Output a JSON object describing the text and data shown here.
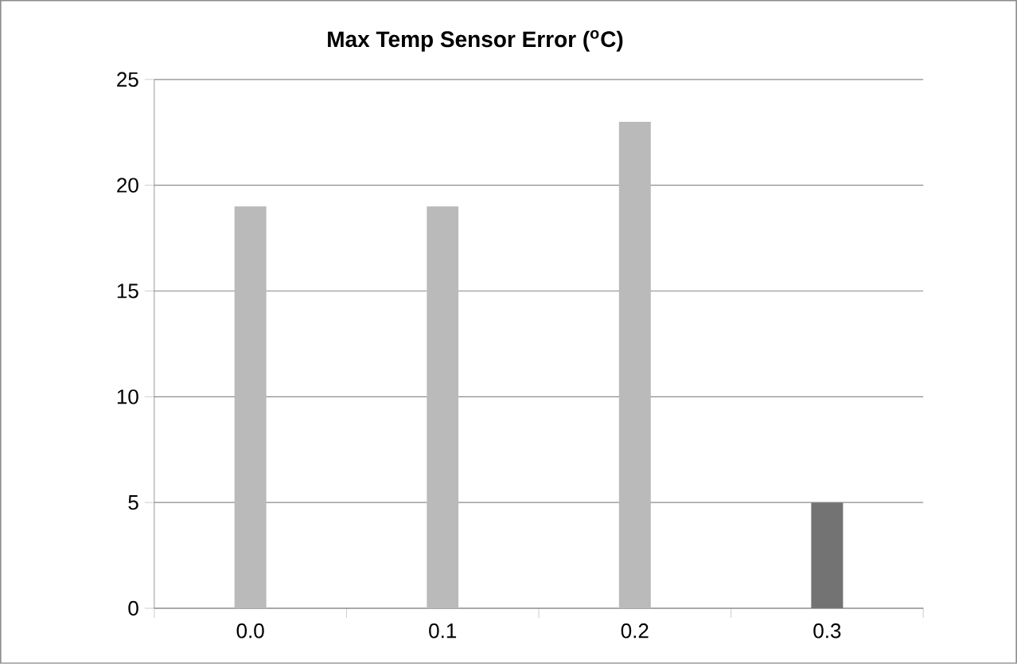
{
  "chart_data": {
    "type": "bar",
    "title": "Max Temp Sensor Error ($^{o}$C)",
    "categories": [
      "0.0",
      "0.1",
      "0.2",
      "0.3"
    ],
    "values": [
      19,
      19,
      23,
      5
    ],
    "colors": [
      "#bababa",
      "#bababa",
      "#bababa",
      "#737373"
    ],
    "ylim": [
      0,
      25
    ],
    "yticks": [
      0,
      5,
      10,
      15,
      20,
      25
    ],
    "grid": "y"
  }
}
